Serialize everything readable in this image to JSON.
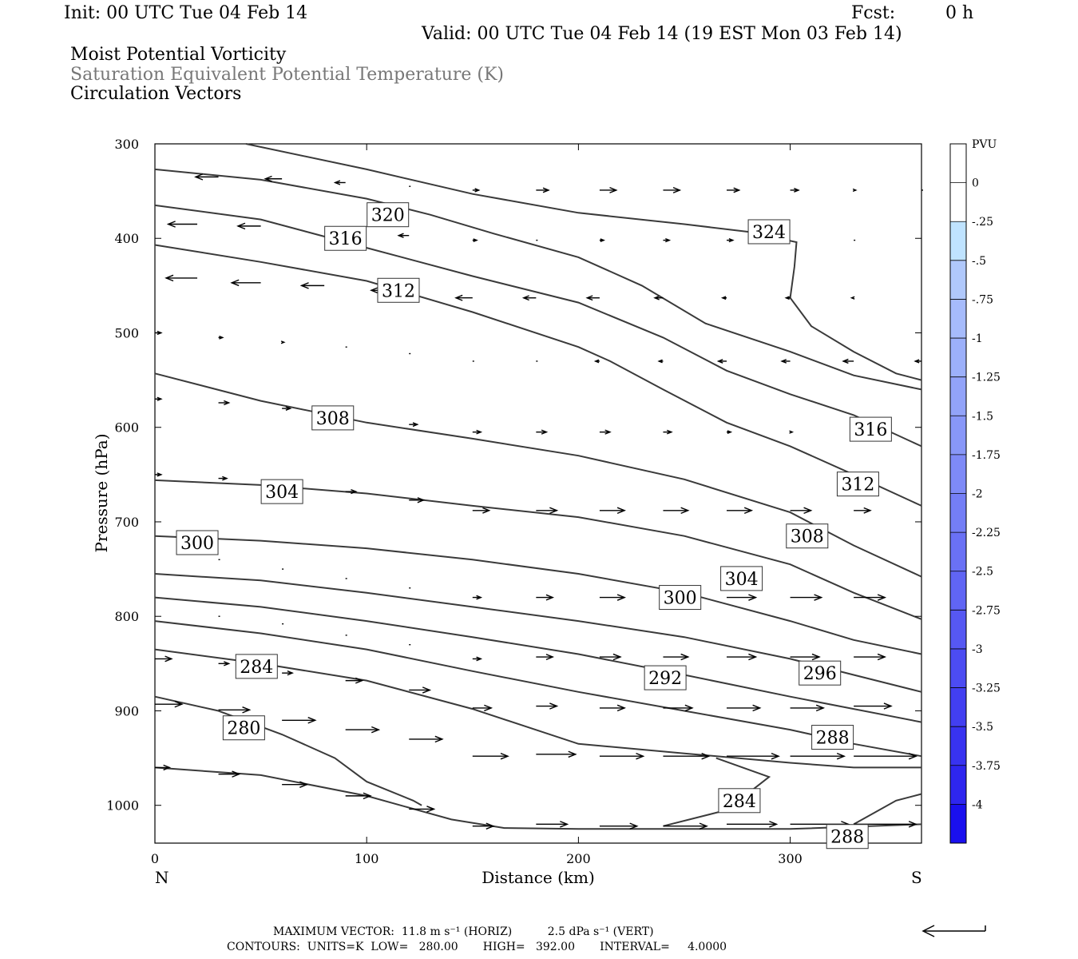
{
  "header": {
    "init": "Init: 00 UTC Tue 04 Feb 14",
    "fcst_label": "Fcst:",
    "fcst_value": "0 h",
    "valid": "Valid: 00 UTC Tue 04 Feb 14 (19 EST Mon 03 Feb 14)"
  },
  "fields": {
    "line1": "Moist Potential Vorticity",
    "line2": "Saturation Equivalent Potential Temperature (K)",
    "line3": "Circulation Vectors"
  },
  "footer": {
    "max_vector": "MAXIMUM VECTOR:  11.8 m s⁻¹ (HORIZ)          2.5 dPa s⁻¹ (VERT)",
    "contours": "CONTOURS:  UNITS=K  LOW=   280.00       HIGH=   392.00       INTERVAL=     4.0000"
  },
  "colors": {
    "contour": "#3a3a3a",
    "vector": "#000000",
    "frame": "#000000"
  },
  "chart_data": {
    "type": "line",
    "xlabel": "Distance (km)",
    "ylabel": "Pressure (hPa)",
    "xlim": [
      0,
      362
    ],
    "ylim": [
      300,
      1040
    ],
    "y_inverted": true,
    "x_ticks": [
      "0",
      "100",
      "200",
      "300"
    ],
    "x_tick_values": [
      0,
      100,
      200,
      300
    ],
    "y_ticks": [
      "300",
      "400",
      "500",
      "600",
      "700",
      "800",
      "900",
      "1000"
    ],
    "y_tick_values": [
      300,
      400,
      500,
      600,
      700,
      800,
      900,
      1000
    ],
    "left_end_label": "N",
    "right_end_label": "S",
    "grid": false,
    "colorbar": {
      "title": "PVU",
      "labels": [
        "0",
        "-.25",
        "-.5",
        "-.75",
        "-1",
        "-1.25",
        "-1.5",
        "-1.75",
        "-2",
        "-2.25",
        "-2.5",
        "-2.75",
        "-3",
        "-3.25",
        "-3.5",
        "-3.75",
        "-4"
      ],
      "colors": [
        "#ffffff",
        "#ffffff",
        "#bfe3ff",
        "#b0c8fb",
        "#a6bbfb",
        "#9cb0fa",
        "#92a3f9",
        "#8897f8",
        "#7e8af7",
        "#747ef6",
        "#6a71f5",
        "#6065f4",
        "#5658f3",
        "#4c4cf2",
        "#423ff1",
        "#3833f0",
        "#2e26ef",
        "#1a10ee"
      ]
    },
    "series": [
      {
        "name": "324",
        "x": [
          43,
          100,
          150,
          200,
          250,
          280,
          303,
          302,
          300
        ],
        "y": [
          300,
          327,
          353,
          373,
          385,
          393,
          404,
          430,
          463
        ]
      },
      {
        "name": "320",
        "x": [
          300,
          310,
          330,
          350,
          362
        ],
        "y": [
          463,
          493,
          520,
          543,
          550
        ]
      },
      {
        "name": "320",
        "x": [
          0,
          50,
          100,
          130,
          160,
          200,
          230,
          260,
          300,
          330,
          362
        ],
        "y": [
          327,
          338,
          358,
          375,
          395,
          420,
          450,
          490,
          520,
          545,
          560
        ]
      },
      {
        "name": "316",
        "x": [
          0,
          50,
          100,
          150,
          200,
          240,
          270,
          300,
          330,
          362
        ],
        "y": [
          365,
          380,
          410,
          440,
          468,
          505,
          540,
          565,
          587,
          620
        ]
      },
      {
        "name": "312",
        "x": [
          0,
          50,
          100,
          150,
          200,
          215,
          240,
          270,
          300,
          330,
          362
        ],
        "y": [
          407,
          425,
          445,
          478,
          515,
          530,
          560,
          595,
          620,
          650,
          683
        ]
      },
      {
        "name": "308",
        "x": [
          0,
          50,
          100,
          150,
          200,
          250,
          300,
          330,
          362
        ],
        "y": [
          543,
          572,
          595,
          612,
          630,
          655,
          690,
          725,
          758
        ]
      },
      {
        "name": "304",
        "x": [
          0,
          50,
          100,
          150,
          200,
          250,
          300,
          330,
          362
        ],
        "y": [
          656,
          661,
          670,
          683,
          695,
          715,
          745,
          775,
          803
        ]
      },
      {
        "name": "300",
        "x": [
          0,
          50,
          100,
          150,
          200,
          250,
          300,
          330,
          362
        ],
        "y": [
          715,
          720,
          728,
          740,
          755,
          775,
          805,
          825,
          840
        ]
      },
      {
        "name": "296",
        "x": [
          0,
          50,
          100,
          150,
          200,
          250,
          300,
          330,
          362
        ],
        "y": [
          755,
          762,
          775,
          790,
          805,
          822,
          845,
          862,
          880
        ]
      },
      {
        "name": "292",
        "x": [
          0,
          50,
          100,
          150,
          200,
          250,
          300,
          330,
          362
        ],
        "y": [
          780,
          790,
          805,
          822,
          840,
          862,
          885,
          898,
          912
        ]
      },
      {
        "name": "288",
        "x": [
          0,
          50,
          100,
          150,
          200,
          250,
          300,
          330,
          362
        ],
        "y": [
          805,
          818,
          835,
          858,
          880,
          900,
          920,
          935,
          948
        ]
      },
      {
        "name": "284",
        "x": [
          0,
          50,
          100,
          150,
          200,
          250,
          300,
          330,
          362
        ],
        "y": [
          835,
          850,
          868,
          898,
          935,
          945,
          955,
          960,
          960
        ]
      },
      {
        "name": "280",
        "x": [
          0,
          30,
          60,
          85,
          100,
          122,
          126
        ],
        "y": [
          885,
          900,
          925,
          950,
          975,
          995,
          1000
        ]
      },
      {
        "name": "280",
        "x": [
          0,
          50,
          100,
          140,
          165,
          200,
          300,
          362
        ],
        "y": [
          960,
          968,
          990,
          1015,
          1024,
          1025,
          1025,
          1020
        ]
      },
      {
        "name": "284",
        "x": [
          240,
          270,
          290,
          265
        ],
        "y": [
          1022,
          1005,
          970,
          950
        ]
      },
      {
        "name": "288",
        "x": [
          330,
          350,
          362
        ],
        "y": [
          1020,
          995,
          988
        ]
      }
    ],
    "contour_labels": [
      {
        "text": "324",
        "x": 290,
        "y": 393
      },
      {
        "text": "320",
        "x": 110,
        "y": 375
      },
      {
        "text": "316",
        "x": 90,
        "y": 400
      },
      {
        "text": "312",
        "x": 115,
        "y": 455
      },
      {
        "text": "316",
        "x": 338,
        "y": 602
      },
      {
        "text": "308",
        "x": 84,
        "y": 590
      },
      {
        "text": "312",
        "x": 332,
        "y": 660
      },
      {
        "text": "304",
        "x": 60,
        "y": 668
      },
      {
        "text": "308",
        "x": 308,
        "y": 715
      },
      {
        "text": "300",
        "x": 20,
        "y": 722
      },
      {
        "text": "304",
        "x": 277,
        "y": 760
      },
      {
        "text": "300",
        "x": 248,
        "y": 780
      },
      {
        "text": "284",
        "x": 48,
        "y": 853
      },
      {
        "text": "292",
        "x": 241,
        "y": 865
      },
      {
        "text": "296",
        "x": 314,
        "y": 860
      },
      {
        "text": "280",
        "x": 42,
        "y": 918
      },
      {
        "text": "288",
        "x": 320,
        "y": 928
      },
      {
        "text": "284",
        "x": 276,
        "y": 995
      },
      {
        "text": "288",
        "x": 327,
        "y": 1033
      }
    ],
    "vectors": [
      {
        "x": 30,
        "y": 335,
        "dx": -11,
        "dy": 0
      },
      {
        "x": 60,
        "y": 337,
        "dx": -8,
        "dy": 0
      },
      {
        "x": 90,
        "y": 341,
        "dx": -5,
        "dy": 0
      },
      {
        "x": 120,
        "y": 345,
        "dx": 0,
        "dy": 0
      },
      {
        "x": 150,
        "y": 349,
        "dx": 3,
        "dy": 0
      },
      {
        "x": 180,
        "y": 349,
        "dx": 6,
        "dy": 0
      },
      {
        "x": 210,
        "y": 349,
        "dx": 8,
        "dy": 0
      },
      {
        "x": 240,
        "y": 349,
        "dx": 8,
        "dy": 0
      },
      {
        "x": 270,
        "y": 349,
        "dx": 6,
        "dy": 0
      },
      {
        "x": 300,
        "y": 349,
        "dx": 4,
        "dy": 0
      },
      {
        "x": 330,
        "y": 349,
        "dx": 1,
        "dy": 0
      },
      {
        "x": 362,
        "y": 349,
        "dx": 0,
        "dy": 0
      },
      {
        "x": 20,
        "y": 385,
        "dx": -14,
        "dy": 0
      },
      {
        "x": 50,
        "y": 387,
        "dx": -11,
        "dy": 0
      },
      {
        "x": 120,
        "y": 397,
        "dx": -5,
        "dy": 0
      },
      {
        "x": 150,
        "y": 402,
        "dx": 2,
        "dy": 0
      },
      {
        "x": 180,
        "y": 402,
        "dx": 0,
        "dy": 0
      },
      {
        "x": 210,
        "y": 402,
        "dx": 2,
        "dy": 0
      },
      {
        "x": 240,
        "y": 402,
        "dx": 3,
        "dy": 0
      },
      {
        "x": 270,
        "y": 402,
        "dx": 3,
        "dy": 0
      },
      {
        "x": 330,
        "y": 402,
        "dx": 0,
        "dy": 0
      },
      {
        "x": 20,
        "y": 442,
        "dx": -15,
        "dy": 0
      },
      {
        "x": 50,
        "y": 447,
        "dx": -14,
        "dy": 0
      },
      {
        "x": 80,
        "y": 450,
        "dx": -11,
        "dy": 0
      },
      {
        "x": 110,
        "y": 455,
        "dx": -8,
        "dy": 0
      },
      {
        "x": 150,
        "y": 463,
        "dx": -8,
        "dy": 0
      },
      {
        "x": 180,
        "y": 463,
        "dx": -6,
        "dy": 0
      },
      {
        "x": 210,
        "y": 463,
        "dx": -6,
        "dy": 0
      },
      {
        "x": 240,
        "y": 463,
        "dx": -4,
        "dy": 0
      },
      {
        "x": 270,
        "y": 463,
        "dx": -2,
        "dy": 0
      },
      {
        "x": 300,
        "y": 463,
        "dx": -2,
        "dy": 0
      },
      {
        "x": 330,
        "y": 463,
        "dx": -1,
        "dy": 0
      },
      {
        "x": 0,
        "y": 500,
        "dx": 3,
        "dy": 0
      },
      {
        "x": 30,
        "y": 505,
        "dx": 2,
        "dy": 0
      },
      {
        "x": 60,
        "y": 510,
        "dx": 1,
        "dy": 0
      },
      {
        "x": 90,
        "y": 515,
        "dx": 0,
        "dy": 0
      },
      {
        "x": 120,
        "y": 522,
        "dx": 0,
        "dy": 0
      },
      {
        "x": 150,
        "y": 530,
        "dx": 0,
        "dy": 0
      },
      {
        "x": 180,
        "y": 530,
        "dx": 0,
        "dy": 0
      },
      {
        "x": 210,
        "y": 530,
        "dx": -2,
        "dy": 0
      },
      {
        "x": 240,
        "y": 530,
        "dx": -2,
        "dy": 0
      },
      {
        "x": 270,
        "y": 530,
        "dx": -4,
        "dy": 0
      },
      {
        "x": 300,
        "y": 530,
        "dx": -4,
        "dy": 0
      },
      {
        "x": 330,
        "y": 530,
        "dx": -5,
        "dy": 0
      },
      {
        "x": 362,
        "y": 530,
        "dx": -3,
        "dy": 0
      },
      {
        "x": 0,
        "y": 570,
        "dx": 3,
        "dy": 0
      },
      {
        "x": 30,
        "y": 574,
        "dx": 5,
        "dy": 0
      },
      {
        "x": 60,
        "y": 580,
        "dx": 4,
        "dy": 0
      },
      {
        "x": 90,
        "y": 588,
        "dx": 3,
        "dy": 0
      },
      {
        "x": 120,
        "y": 597,
        "dx": 4,
        "dy": 0
      },
      {
        "x": 150,
        "y": 605,
        "dx": 4,
        "dy": 0
      },
      {
        "x": 180,
        "y": 605,
        "dx": 5,
        "dy": 0
      },
      {
        "x": 210,
        "y": 605,
        "dx": 5,
        "dy": 0
      },
      {
        "x": 240,
        "y": 605,
        "dx": 4,
        "dy": 0
      },
      {
        "x": 270,
        "y": 605,
        "dx": 2,
        "dy": 0
      },
      {
        "x": 300,
        "y": 605,
        "dx": 1,
        "dy": 0
      },
      {
        "x": 0,
        "y": 650,
        "dx": 3,
        "dy": 0
      },
      {
        "x": 30,
        "y": 654,
        "dx": 4,
        "dy": 0
      },
      {
        "x": 60,
        "y": 660,
        "dx": 5,
        "dy": 0
      },
      {
        "x": 90,
        "y": 668,
        "dx": 5,
        "dy": 0
      },
      {
        "x": 120,
        "y": 677,
        "dx": 7,
        "dy": 0
      },
      {
        "x": 150,
        "y": 688,
        "dx": 8,
        "dy": 0
      },
      {
        "x": 180,
        "y": 688,
        "dx": 10,
        "dy": 0
      },
      {
        "x": 210,
        "y": 688,
        "dx": 12,
        "dy": 0
      },
      {
        "x": 240,
        "y": 688,
        "dx": 12,
        "dy": 0
      },
      {
        "x": 270,
        "y": 688,
        "dx": 12,
        "dy": 0
      },
      {
        "x": 300,
        "y": 688,
        "dx": 10,
        "dy": 0
      },
      {
        "x": 330,
        "y": 688,
        "dx": 8,
        "dy": 0
      },
      {
        "x": 30,
        "y": 740,
        "dx": 0,
        "dy": 0
      },
      {
        "x": 60,
        "y": 750,
        "dx": 0,
        "dy": 0
      },
      {
        "x": 90,
        "y": 760,
        "dx": 0,
        "dy": 0
      },
      {
        "x": 120,
        "y": 770,
        "dx": 0,
        "dy": 0
      },
      {
        "x": 150,
        "y": 780,
        "dx": 4,
        "dy": 0
      },
      {
        "x": 180,
        "y": 780,
        "dx": 8,
        "dy": 0
      },
      {
        "x": 210,
        "y": 780,
        "dx": 12,
        "dy": 0
      },
      {
        "x": 240,
        "y": 780,
        "dx": 14,
        "dy": 0
      },
      {
        "x": 270,
        "y": 780,
        "dx": 14,
        "dy": 0
      },
      {
        "x": 300,
        "y": 780,
        "dx": 15,
        "dy": 0
      },
      {
        "x": 330,
        "y": 780,
        "dx": 15,
        "dy": 0
      },
      {
        "x": 30,
        "y": 800,
        "dx": 0,
        "dy": 0
      },
      {
        "x": 60,
        "y": 808,
        "dx": 0,
        "dy": 0
      },
      {
        "x": 90,
        "y": 820,
        "dx": 0,
        "dy": 0
      },
      {
        "x": 120,
        "y": 830,
        "dx": 0,
        "dy": 0
      },
      {
        "x": 0,
        "y": 845,
        "dx": 8,
        "dy": 0
      },
      {
        "x": 150,
        "y": 845,
        "dx": 4,
        "dy": 0
      },
      {
        "x": 180,
        "y": 843,
        "dx": 8,
        "dy": 0
      },
      {
        "x": 210,
        "y": 843,
        "dx": 10,
        "dy": 0
      },
      {
        "x": 240,
        "y": 843,
        "dx": 12,
        "dy": 0
      },
      {
        "x": 270,
        "y": 843,
        "dx": 14,
        "dy": 0
      },
      {
        "x": 300,
        "y": 843,
        "dx": 14,
        "dy": 0
      },
      {
        "x": 330,
        "y": 843,
        "dx": 15,
        "dy": 0
      },
      {
        "x": 30,
        "y": 850,
        "dx": 5,
        "dy": 0
      },
      {
        "x": 60,
        "y": 860,
        "dx": 5,
        "dy": 0
      },
      {
        "x": 90,
        "y": 868,
        "dx": 8,
        "dy": 0
      },
      {
        "x": 120,
        "y": 878,
        "dx": 10,
        "dy": 0
      },
      {
        "x": 0,
        "y": 893,
        "dx": 13,
        "dy": 0
      },
      {
        "x": 30,
        "y": 899,
        "dx": 15,
        "dy": 0
      },
      {
        "x": 60,
        "y": 910,
        "dx": 16,
        "dy": 0
      },
      {
        "x": 90,
        "y": 920,
        "dx": 16,
        "dy": 0
      },
      {
        "x": 120,
        "y": 930,
        "dx": 16,
        "dy": 0
      },
      {
        "x": 150,
        "y": 897,
        "dx": 9,
        "dy": 0
      },
      {
        "x": 180,
        "y": 895,
        "dx": 10,
        "dy": 0
      },
      {
        "x": 210,
        "y": 897,
        "dx": 12,
        "dy": 0
      },
      {
        "x": 240,
        "y": 897,
        "dx": 14,
        "dy": 0
      },
      {
        "x": 270,
        "y": 897,
        "dx": 16,
        "dy": 0
      },
      {
        "x": 300,
        "y": 897,
        "dx": 16,
        "dy": 0
      },
      {
        "x": 330,
        "y": 895,
        "dx": 18,
        "dy": 0
      },
      {
        "x": 150,
        "y": 948,
        "dx": 17,
        "dy": 0
      },
      {
        "x": 180,
        "y": 946,
        "dx": 19,
        "dy": 0
      },
      {
        "x": 210,
        "y": 948,
        "dx": 21,
        "dy": 0
      },
      {
        "x": 240,
        "y": 948,
        "dx": 22,
        "dy": 0
      },
      {
        "x": 270,
        "y": 948,
        "dx": 25,
        "dy": 0
      },
      {
        "x": 300,
        "y": 948,
        "dx": 26,
        "dy": 0
      },
      {
        "x": 330,
        "y": 948,
        "dx": 30,
        "dy": 0
      },
      {
        "x": 0,
        "y": 960,
        "dx": 7,
        "dy": 0
      },
      {
        "x": 30,
        "y": 967,
        "dx": 10,
        "dy": 0
      },
      {
        "x": 60,
        "y": 978,
        "dx": 12,
        "dy": 0
      },
      {
        "x": 90,
        "y": 990,
        "dx": 12,
        "dy": 0
      },
      {
        "x": 120,
        "y": 1004,
        "dx": 12,
        "dy": 0
      },
      {
        "x": 150,
        "y": 1022,
        "dx": 10,
        "dy": 0
      },
      {
        "x": 180,
        "y": 1020,
        "dx": 15,
        "dy": 0
      },
      {
        "x": 210,
        "y": 1022,
        "dx": 18,
        "dy": 0
      },
      {
        "x": 240,
        "y": 1022,
        "dx": 21,
        "dy": 0
      },
      {
        "x": 270,
        "y": 1020,
        "dx": 24,
        "dy": 0
      },
      {
        "x": 300,
        "y": 1020,
        "dx": 28,
        "dy": 0
      },
      {
        "x": 330,
        "y": 1020,
        "dx": 30,
        "dy": 0
      }
    ]
  }
}
